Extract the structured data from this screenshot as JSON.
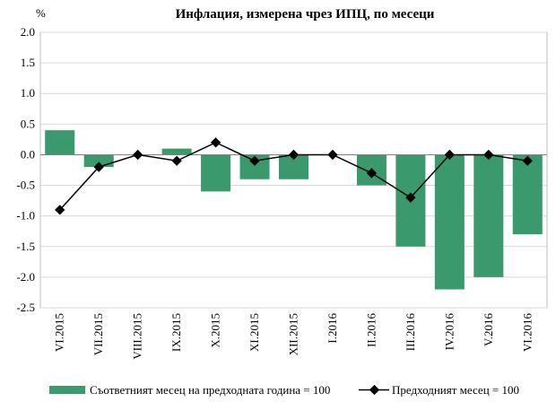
{
  "chart_data": {
    "type": "bar",
    "title": "Инфлация, измерена чрез ИПЦ, по месеци",
    "unit_label": "%",
    "xlabel": "",
    "ylabel": "",
    "ylim": [
      -2.5,
      2.0
    ],
    "ytick_step": 0.5,
    "yticks": [
      "2.0",
      "1.5",
      "1.0",
      "0.5",
      "0.0",
      "-0.5",
      "-1.0",
      "-1.5",
      "-2.0",
      "-2.5"
    ],
    "grid": true,
    "legend_position": "bottom",
    "categories": [
      "VI.2015",
      "VII.2015",
      "VIII.2015",
      "IX.2015",
      "X.2015",
      "XI.2015",
      "XII.2015",
      "I.2016",
      "II.2016",
      "III.2016",
      "IV.2016",
      "V.2016",
      "VI.2016"
    ],
    "series": [
      {
        "name": "Съответният месец на предходната година = 100",
        "type": "bar",
        "color": "#3a9a6e",
        "values": [
          0.4,
          -0.2,
          0.0,
          0.1,
          -0.6,
          -0.4,
          -0.4,
          0.0,
          -0.5,
          -1.5,
          -2.2,
          -2.0,
          -1.3
        ]
      },
      {
        "name": "Предходният месец = 100",
        "type": "line",
        "color": "#000000",
        "values": [
          -0.9,
          -0.2,
          0.0,
          -0.1,
          0.2,
          -0.1,
          0.0,
          0.0,
          -0.3,
          -0.7,
          0.0,
          0.0,
          -0.1
        ]
      }
    ]
  }
}
